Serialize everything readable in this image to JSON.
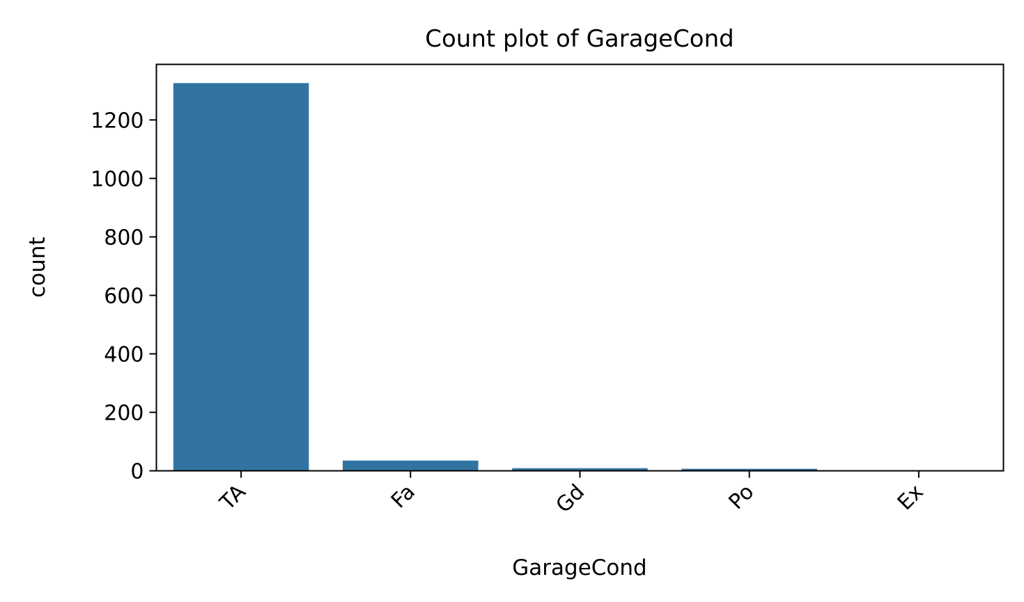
{
  "chart_data": {
    "type": "bar",
    "title": "Count plot of GarageCond",
    "xlabel": "GarageCond",
    "ylabel": "count",
    "categories": [
      "TA",
      "Fa",
      "Gd",
      "Po",
      "Ex"
    ],
    "values": [
      1326,
      35,
      9,
      7,
      2
    ],
    "ylim": [
      0,
      1390
    ],
    "yticks": [
      0,
      200,
      400,
      600,
      800,
      1000,
      1200
    ],
    "ytick_labels": [
      "0",
      "200",
      "400",
      "600",
      "800",
      "1000",
      "1200"
    ],
    "xtick_rotation": 45,
    "grid": false,
    "legend": "none",
    "bar_color": "#3274a1"
  }
}
